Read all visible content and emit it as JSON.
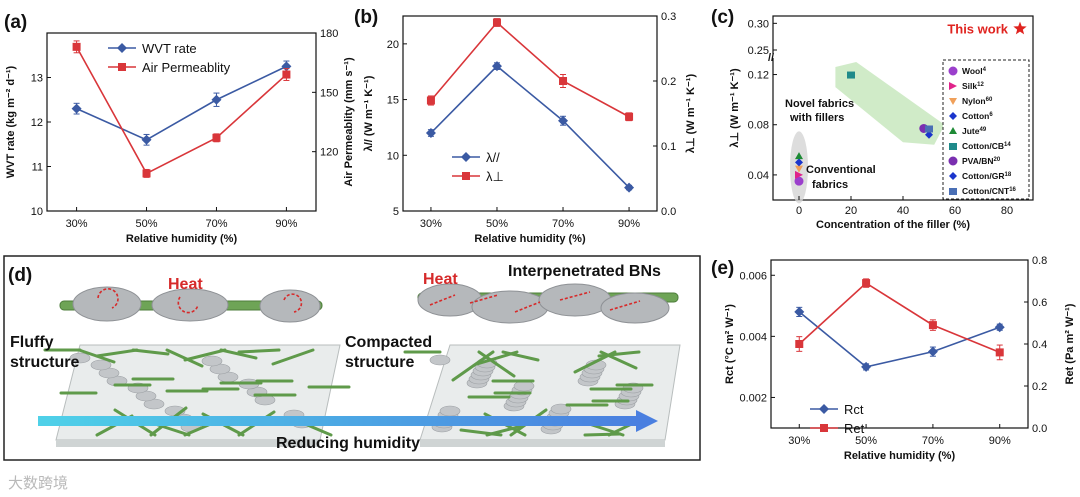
{
  "panels": {
    "a": "(a)",
    "b": "(b)",
    "c": "(c)",
    "d": "(d)",
    "e": "(e)"
  },
  "watermark": "大数跨境",
  "colors": {
    "blue": "#3b5aa3",
    "red": "#d9363a",
    "green_band": "#c8e8be",
    "fiber": "#5f9a4a",
    "star": "#e0231f"
  },
  "chart_data": [
    {
      "id": "a",
      "type": "line",
      "categories": [
        "30%",
        "50%",
        "70%",
        "90%"
      ],
      "xlabel": "Relative humidity (%)",
      "ylabel": "WVT rate (kg m⁻² d⁻¹)",
      "ylabel_right": "Air Permeablity (mm s⁻¹)",
      "ylim": [
        10,
        14
      ],
      "ylim_right": [
        90,
        180
      ],
      "yticks": [
        "10",
        "11",
        "12",
        "13"
      ],
      "yticks_right": [
        "120",
        "150",
        "180"
      ],
      "legend_position": "top",
      "series": [
        {
          "name": "WVT rate",
          "axis": "left",
          "color": "#3b5aa3",
          "marker": "diamond",
          "values": [
            12.3,
            11.6,
            12.5,
            13.25
          ],
          "errors": [
            0.12,
            0.12,
            0.15,
            0.12
          ]
        },
        {
          "name": "Air Permeablity",
          "axis": "right",
          "color": "#d9363a",
          "marker": "square",
          "values": [
            173,
            109,
            127,
            159
          ],
          "errors": [
            3,
            2,
            2,
            3
          ]
        }
      ]
    },
    {
      "id": "b",
      "type": "line",
      "categories": [
        "30%",
        "50%",
        "70%",
        "90%"
      ],
      "xlabel": "Relative humidity (%)",
      "ylabel": "λ// (W m⁻¹ K⁻¹)",
      "ylabel_right": "λ⊥ (W m⁻¹ K⁻¹)",
      "ylim": [
        5,
        22.5
      ],
      "ylim_right": [
        0,
        0.3
      ],
      "yticks": [
        "5",
        "10",
        "15",
        "20"
      ],
      "yticks_right": [
        "0.0",
        "0.1",
        "0.2",
        "0.3"
      ],
      "legend_position": "bottom-left",
      "series": [
        {
          "name": "λ//",
          "axis": "left",
          "color": "#3b5aa3",
          "marker": "diamond",
          "values": [
            12.0,
            18.0,
            13.1,
            7.1
          ],
          "errors": [
            0.3,
            0.3,
            0.4,
            0.2
          ]
        },
        {
          "name": "λ⊥",
          "axis": "right",
          "color": "#d9363a",
          "marker": "square",
          "values": [
            0.17,
            0.29,
            0.2,
            0.145
          ],
          "errors": [
            0.007,
            0.006,
            0.01,
            0.006
          ]
        }
      ]
    },
    {
      "id": "c",
      "type": "scatter",
      "xlabel": "Concentration of the filler (%)",
      "ylabel": "λ⊥ (W m⁻¹ K⁻¹)",
      "xlim": [
        -10,
        90
      ],
      "xticks": [
        "0",
        "20",
        "40",
        "60",
        "80"
      ],
      "yticks": [
        "0.04",
        "0.08",
        "0.12",
        "0.25",
        "0.30"
      ],
      "axis_break": true,
      "this_work": {
        "label": "This work",
        "x": 85,
        "y": 0.29
      },
      "annotations": [
        "Novel fabrics with fillers",
        "Conventional fabrics"
      ],
      "legend": [
        {
          "name": "Wool",
          "ref": "4",
          "color": "#9b3fcc",
          "shape": "circle",
          "x": 0,
          "y": 0.035
        },
        {
          "name": "Silk",
          "ref": "12",
          "color": "#e0238a",
          "shape": "tri-right",
          "x": 0,
          "y": 0.04
        },
        {
          "name": "Nylon",
          "ref": "60",
          "color": "#f0a05a",
          "shape": "tri-down",
          "x": 0,
          "y": 0.045
        },
        {
          "name": "Cotton",
          "ref": "6",
          "color": "#1b35cc",
          "shape": "diamond",
          "x": 0,
          "y": 0.05
        },
        {
          "name": "Jute",
          "ref": "49",
          "color": "#1e8a35",
          "shape": "tri-up",
          "x": 0,
          "y": 0.055
        },
        {
          "name": "Cotton/CB",
          "ref": "14",
          "color": "#1f8a8a",
          "shape": "square-half",
          "x": 20,
          "y": 0.12
        },
        {
          "name": "PVA/BN",
          "ref": "20",
          "color": "#7a2fb0",
          "shape": "circle-half",
          "x": 48,
          "y": 0.077
        },
        {
          "name": "Cotton/GR",
          "ref": "18",
          "color": "#1b35cc",
          "shape": "diamond-half",
          "x": 50,
          "y": 0.072
        },
        {
          "name": "Cotton/CNT",
          "ref": "16",
          "color": "#4a6fb5",
          "shape": "hex-half",
          "x": 50,
          "y": 0.077
        }
      ]
    },
    {
      "id": "e",
      "type": "line",
      "categories": [
        "30%",
        "50%",
        "70%",
        "90%"
      ],
      "xlabel": "Relative humidity (%)",
      "ylabel": "Rct (°C m² W⁻¹)",
      "ylabel_right": "Ret (Pa m² W⁻¹)",
      "ylim": [
        0.001,
        0.0065
      ],
      "ylim_right": [
        0,
        0.8
      ],
      "yticks": [
        "0.002",
        "0.004",
        "0.006"
      ],
      "yticks_right": [
        "0.0",
        "0.2",
        "0.4",
        "0.6",
        "0.8"
      ],
      "legend_position": "bottom-left",
      "series": [
        {
          "name": "Rct",
          "axis": "left",
          "color": "#3b5aa3",
          "marker": "diamond",
          "values": [
            0.0048,
            0.003,
            0.0035,
            0.0043
          ],
          "errors": [
            0.00015,
            0.0001,
            0.00015,
            0.0001
          ]
        },
        {
          "name": "Ret",
          "axis": "right",
          "color": "#d9363a",
          "marker": "square",
          "values": [
            0.4,
            0.69,
            0.49,
            0.36
          ],
          "errors": [
            0.035,
            0.02,
            0.025,
            0.035
          ]
        }
      ]
    }
  ],
  "panel_d": {
    "heat_left": "Heat",
    "heat_right": "Heat",
    "title_right": "Interpenetrated BNs",
    "label_left": [
      "Fluffy",
      "structure"
    ],
    "label_right": [
      "Compacted",
      "structure"
    ],
    "arrow_text": "Reducing humidity"
  }
}
